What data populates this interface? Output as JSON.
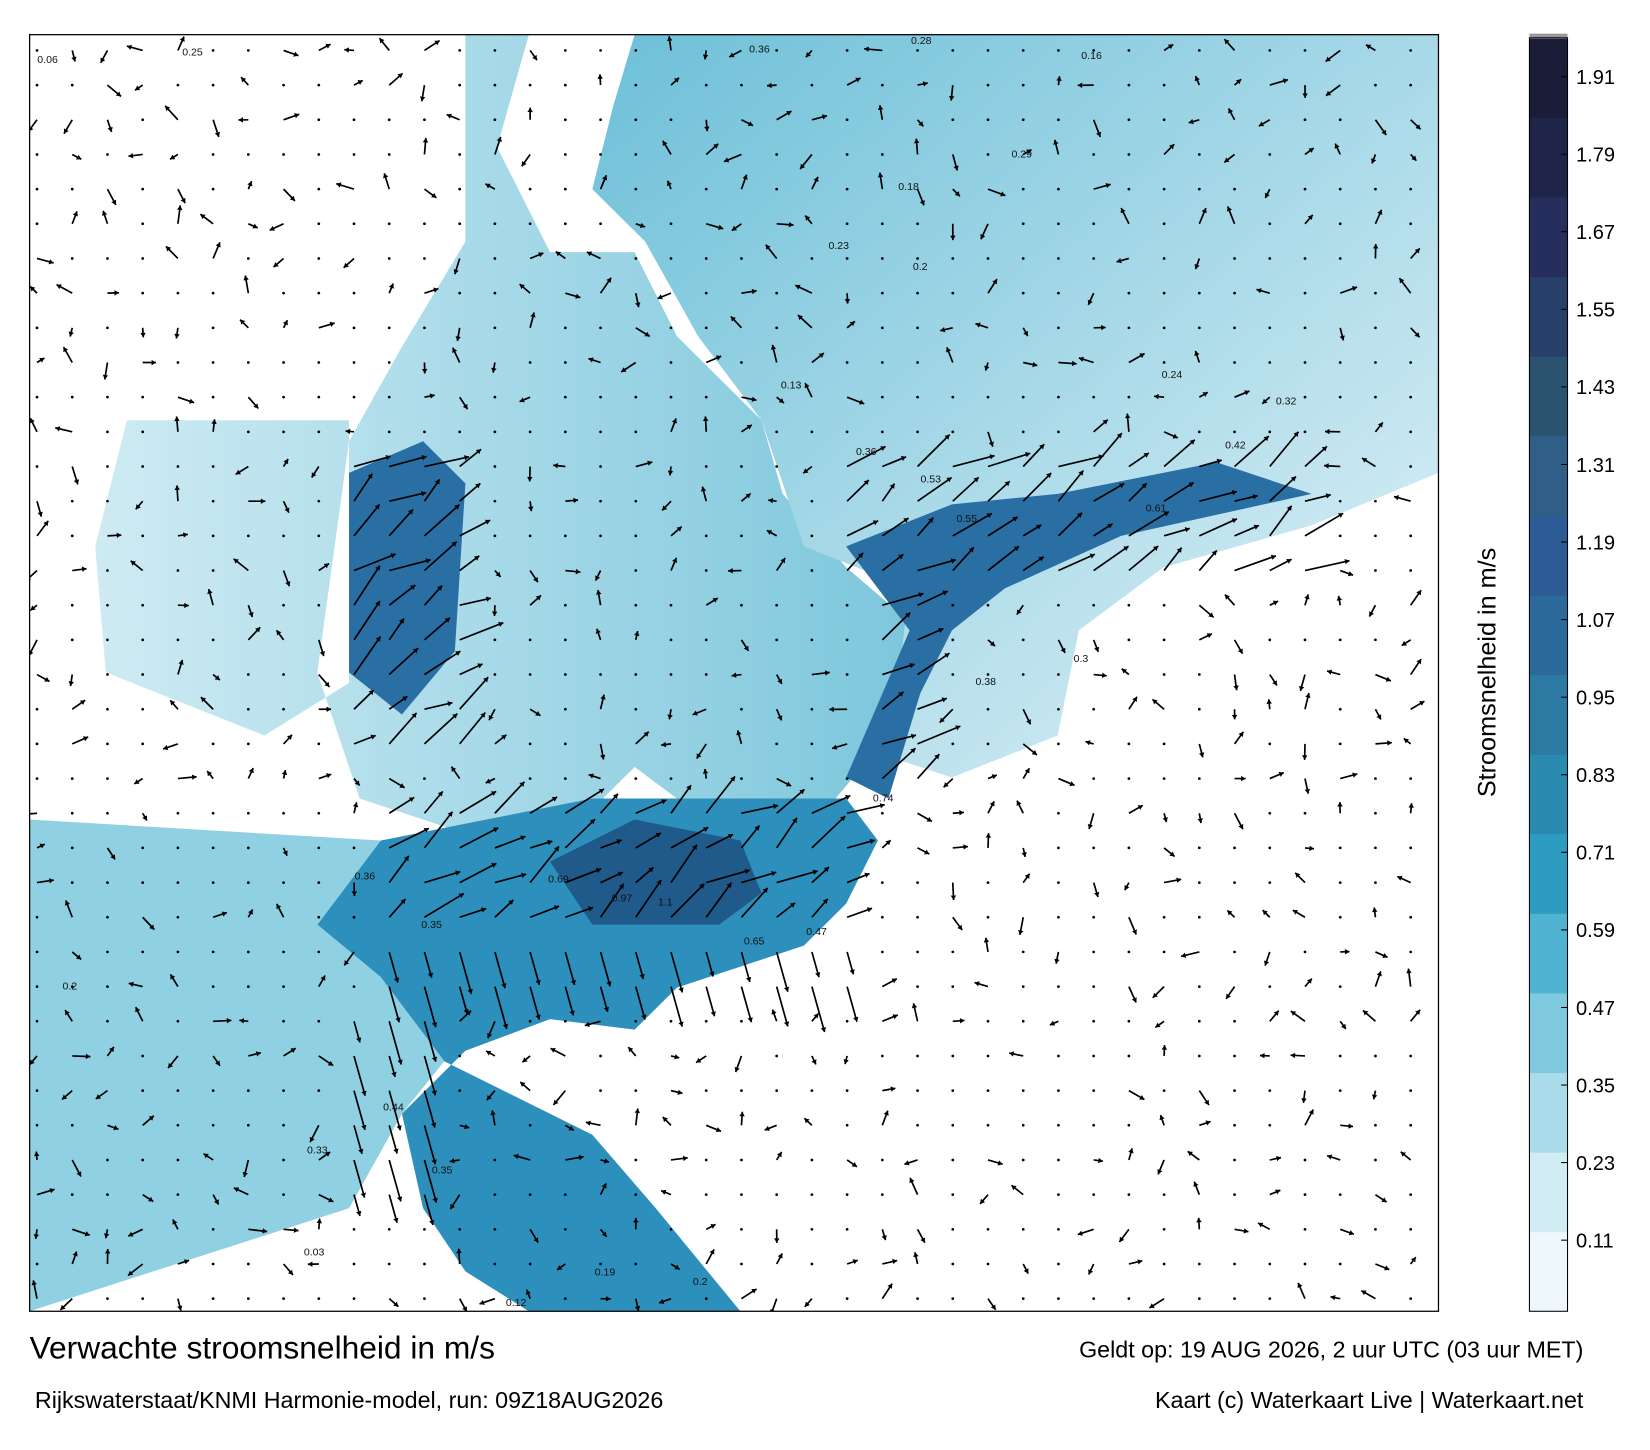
{
  "footer": {
    "title": "Verwachte stroomsnelheid in m/s",
    "subtitle": "Rijkswaterstaat/KNMI Harmonie-model, run: 09Z18AUG2026",
    "valid": "Geldt op: 19 AUG 2026, 2 uur UTC (03 uur MET)",
    "credit": "Kaart (c) Waterkaart Live | Waterkaart.net"
  },
  "colorbar": {
    "label": "Stroomsnelheid in m/s",
    "range": [
      0,
      1.97
    ],
    "ticks": [
      0.11,
      0.23,
      0.35,
      0.47,
      0.59,
      0.71,
      0.83,
      0.95,
      1.07,
      1.19,
      1.31,
      1.43,
      1.55,
      1.67,
      1.79,
      1.91
    ],
    "colors": [
      "#eef7fa",
      "#d2ecf3",
      "#a9dbe8",
      "#7fc9de",
      "#4fb3d1",
      "#2e9cc0",
      "#2b8aaf",
      "#2c7aa3",
      "#2d6a9c",
      "#2c5b96",
      "#2f5f86",
      "#2b5370",
      "#283f6a",
      "#262f5c",
      "#1f2548",
      "#1a1c38"
    ]
  },
  "map": {
    "labels": [
      0.06,
      0.25,
      0.36,
      0.28,
      0.16,
      0.97,
      1.1,
      0.69,
      0.36,
      0.44,
      0.35,
      0.61,
      0.42,
      0.36,
      0.53,
      0.2,
      0.74,
      0.65,
      0.3,
      0.23,
      0.2,
      0.18,
      0.13,
      0.24,
      0.32,
      0.33,
      0.35,
      0.19,
      0.2,
      0.12,
      0.03,
      0.47,
      0.55,
      0.38,
      0.29
    ]
  }
}
